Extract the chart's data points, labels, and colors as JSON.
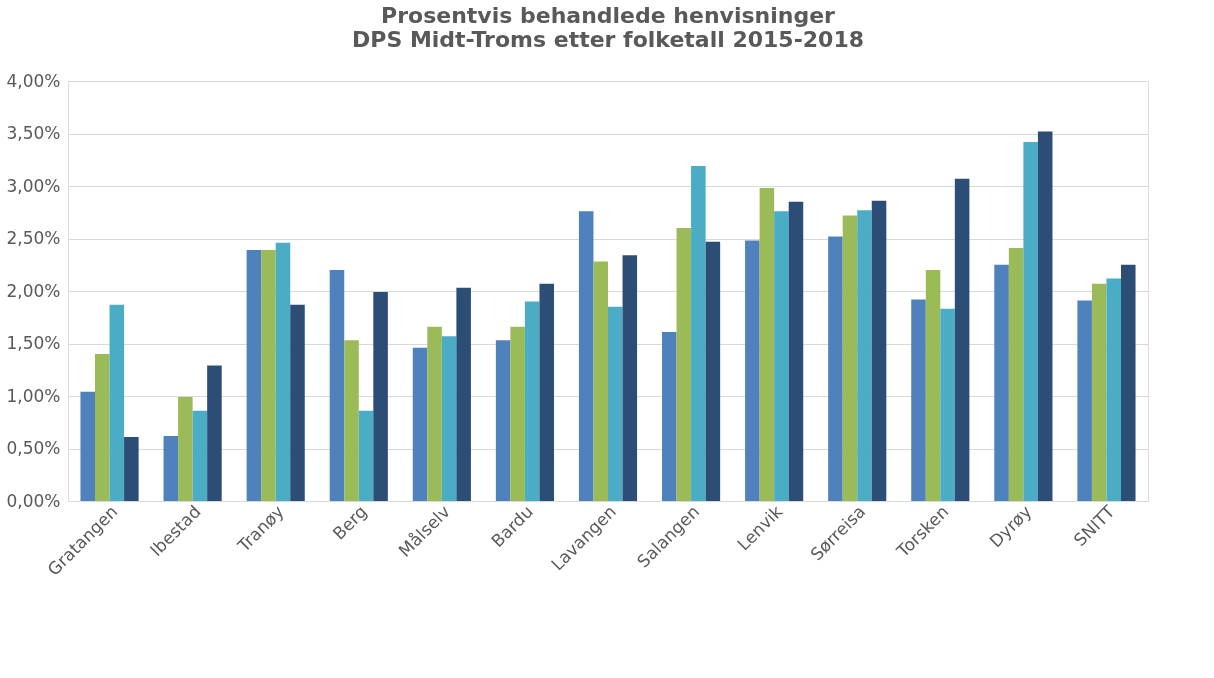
{
  "chart_data": {
    "type": "bar",
    "title": [
      "Prosentvis behandlede henvisninger",
      "DPS Midt-Troms etter folketall 2015-2018"
    ],
    "categories": [
      "Gratangen",
      "Ibestad",
      "Tranøy",
      "Berg",
      "Målselv",
      "Bardu",
      "Lavangen",
      "Salangen",
      "Lenvik",
      "Sørreisa",
      "Torsken",
      "Dyrøy",
      "SNITT"
    ],
    "series": [
      {
        "color": "#4f81bd",
        "values": [
          1.04,
          0.62,
          2.39,
          2.2,
          1.46,
          1.53,
          2.76,
          1.61,
          2.48,
          2.52,
          1.92,
          2.25,
          1.91
        ]
      },
      {
        "color": "#9bbb59",
        "values": [
          1.4,
          0.99,
          2.39,
          1.53,
          1.66,
          1.66,
          2.28,
          2.6,
          2.98,
          2.72,
          2.2,
          2.41,
          2.07
        ]
      },
      {
        "color": "#4bacc6",
        "values": [
          1.87,
          0.86,
          2.46,
          0.86,
          1.57,
          1.9,
          1.85,
          3.19,
          2.76,
          2.77,
          1.83,
          3.42,
          2.12
        ]
      },
      {
        "color": "#2c4d75",
        "values": [
          0.61,
          1.29,
          1.87,
          1.99,
          2.03,
          2.07,
          2.34,
          2.47,
          2.85,
          2.86,
          3.07,
          3.52,
          2.25
        ]
      }
    ],
    "ylim": [
      0,
      4
    ],
    "yticks": [
      {
        "value": 0,
        "label": "0,00%"
      },
      {
        "value": 0.5,
        "label": "0,50%"
      },
      {
        "value": 1,
        "label": "1,00%"
      },
      {
        "value": 1.5,
        "label": "1,50%"
      },
      {
        "value": 2,
        "label": "2,00%"
      },
      {
        "value": 2.5,
        "label": "2,50%"
      },
      {
        "value": 3,
        "label": "3,00%"
      },
      {
        "value": 3.5,
        "label": "3,50%"
      },
      {
        "value": 4,
        "label": "4,00%"
      }
    ],
    "grid": "y",
    "legend": false
  }
}
